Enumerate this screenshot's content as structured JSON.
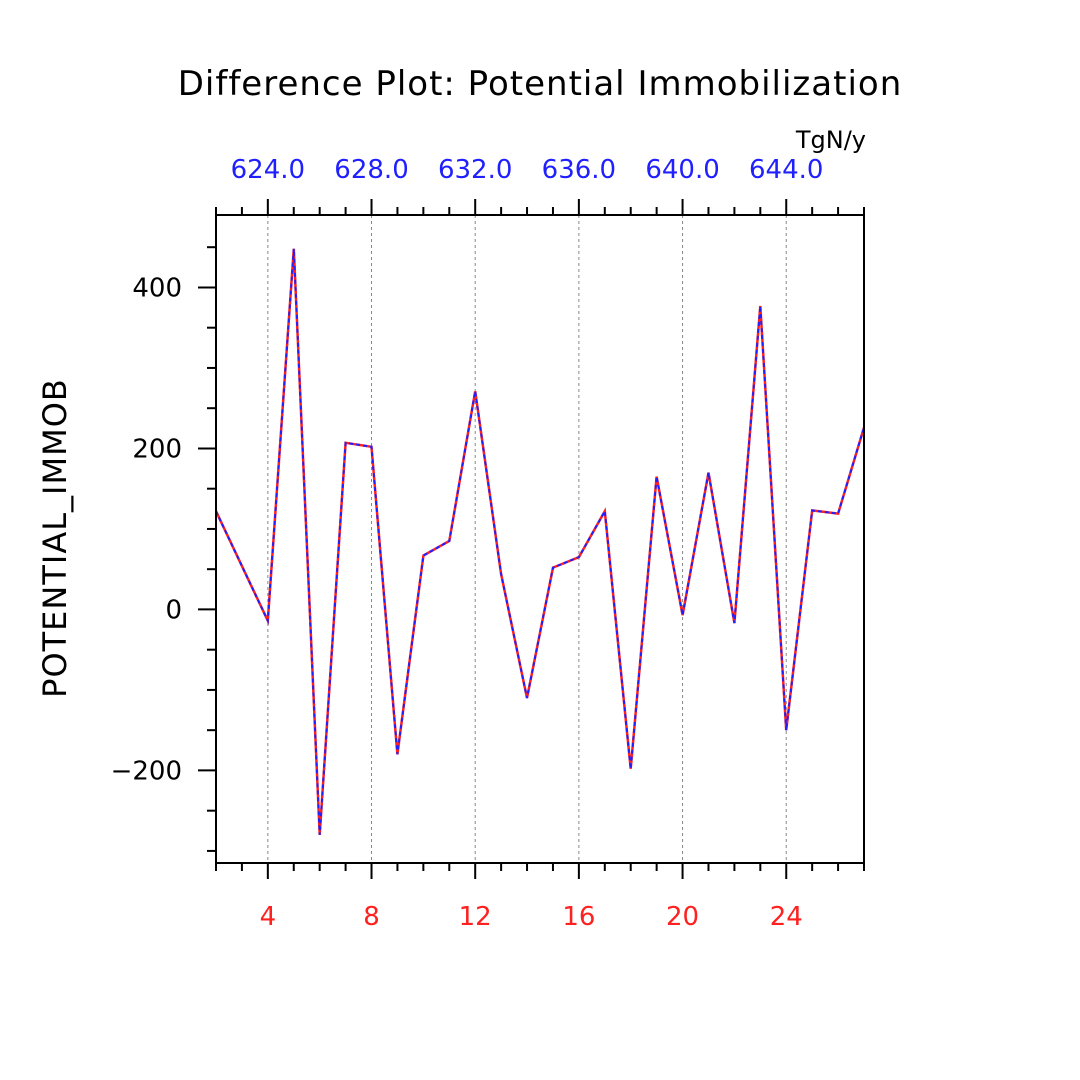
{
  "chart_data": {
    "type": "line",
    "title": "Difference Plot: Potential Immobilization",
    "xlabel": "",
    "ylabel": "POTENTIAL_IMMOB",
    "top_axis_unit": "TgN/y",
    "xlim": [
      2,
      27
    ],
    "ylim": [
      -315,
      490
    ],
    "x_ticks": [
      4,
      8,
      12,
      16,
      20,
      24
    ],
    "x_tick_labels": [
      "4",
      "8",
      "12",
      "16",
      "20",
      "24"
    ],
    "top_ticks": [
      4,
      8,
      12,
      16,
      20,
      24
    ],
    "top_tick_labels": [
      "624.0",
      "628.0",
      "632.0",
      "636.0",
      "640.0",
      "644.0"
    ],
    "y_ticks": [
      -200,
      0,
      200,
      400
    ],
    "y_tick_labels": [
      "−200",
      "0",
      "200",
      "400"
    ],
    "grid": "vertical dashed at major x ticks",
    "colors": {
      "series_a": "#ff2020",
      "series_b": "#2020ff",
      "bottom_ticks": "#ff2020",
      "top_ticks": "#2020ff",
      "axes": "#000000",
      "grid": "#888888"
    },
    "x": [
      2,
      4,
      5,
      6,
      7,
      8,
      9,
      10,
      11,
      12,
      13,
      14,
      15,
      16,
      17,
      18,
      19,
      20,
      21,
      22,
      23,
      24,
      25,
      26,
      27
    ],
    "series": [
      {
        "values": [
          122,
          -14,
          448,
          -280,
          207,
          202,
          -180,
          67,
          85,
          271,
          44,
          -110,
          52,
          65,
          122,
          -198,
          165,
          -7,
          170,
          -17,
          377,
          -150,
          123,
          119,
          226
        ]
      },
      {
        "values": [
          122,
          -14,
          448,
          -280,
          207,
          202,
          -180,
          67,
          85,
          271,
          44,
          -110,
          52,
          65,
          122,
          -198,
          165,
          -7,
          170,
          -17,
          377,
          -150,
          123,
          119,
          226
        ]
      }
    ]
  }
}
